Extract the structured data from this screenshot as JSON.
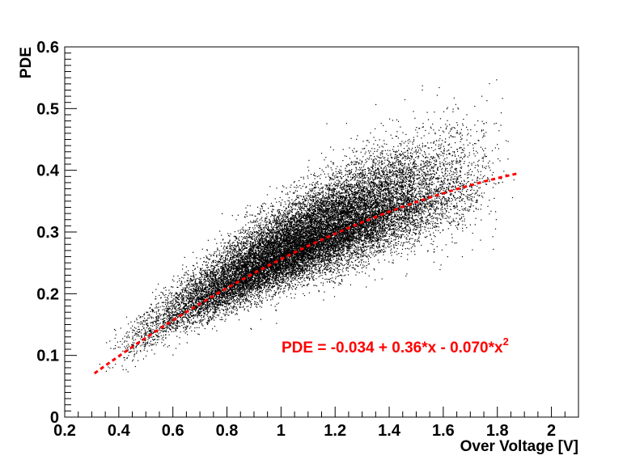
{
  "chart_data": {
    "type": "scatter",
    "xlabel": "Over Voltage [V]",
    "ylabel": "PDE",
    "xlim": [
      0.2,
      2.1
    ],
    "ylim": [
      0,
      0.6
    ],
    "x_ticks": [
      "0.2",
      "0.4",
      "0.6",
      "0.8",
      "1",
      "1.2",
      "1.4",
      "1.6",
      "1.8",
      "2"
    ],
    "y_ticks": [
      "0",
      "0.1",
      "0.2",
      "0.3",
      "0.4",
      "0.5",
      "0.6"
    ],
    "grid": false,
    "point_color": "#000000",
    "scatter_density": {
      "x_range": [
        0.3,
        1.9
      ],
      "center_curve": {
        "c0": -0.034,
        "c1": 0.36,
        "c2": -0.07
      },
      "spread_sd": [
        0.012,
        0.045
      ]
    },
    "fit": {
      "c0": -0.034,
      "c1": 0.36,
      "c2": -0.07,
      "x_range": [
        0.31,
        1.88
      ],
      "color": "#ff0000",
      "style": "dashed",
      "label_main": "PDE = -0.034 + 0.36*x - 0.070*x",
      "label_sup": "2"
    }
  }
}
